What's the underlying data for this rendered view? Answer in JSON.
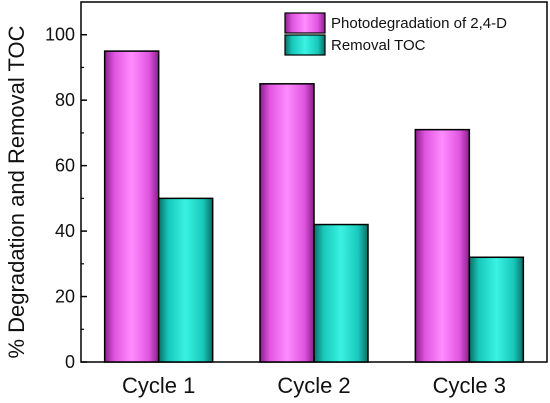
{
  "chart_data": {
    "type": "bar",
    "categories": [
      "Cycle 1",
      "Cycle 2",
      "Cycle 3"
    ],
    "series": [
      {
        "name": "Photodegradation of 2,4-D",
        "values": [
          95,
          85,
          71
        ],
        "color": "#ff66ff"
      },
      {
        "name": "Removal TOC",
        "values": [
          50,
          42,
          32
        ],
        "color": "#1ee0d0"
      }
    ],
    "title": "",
    "xlabel": "",
    "ylabel": "% Degradation and Removal TOC",
    "ylim": [
      0,
      110
    ],
    "yticks": [
      0,
      20,
      40,
      60,
      80,
      100
    ],
    "grid": false,
    "legend_position": "top-right"
  }
}
